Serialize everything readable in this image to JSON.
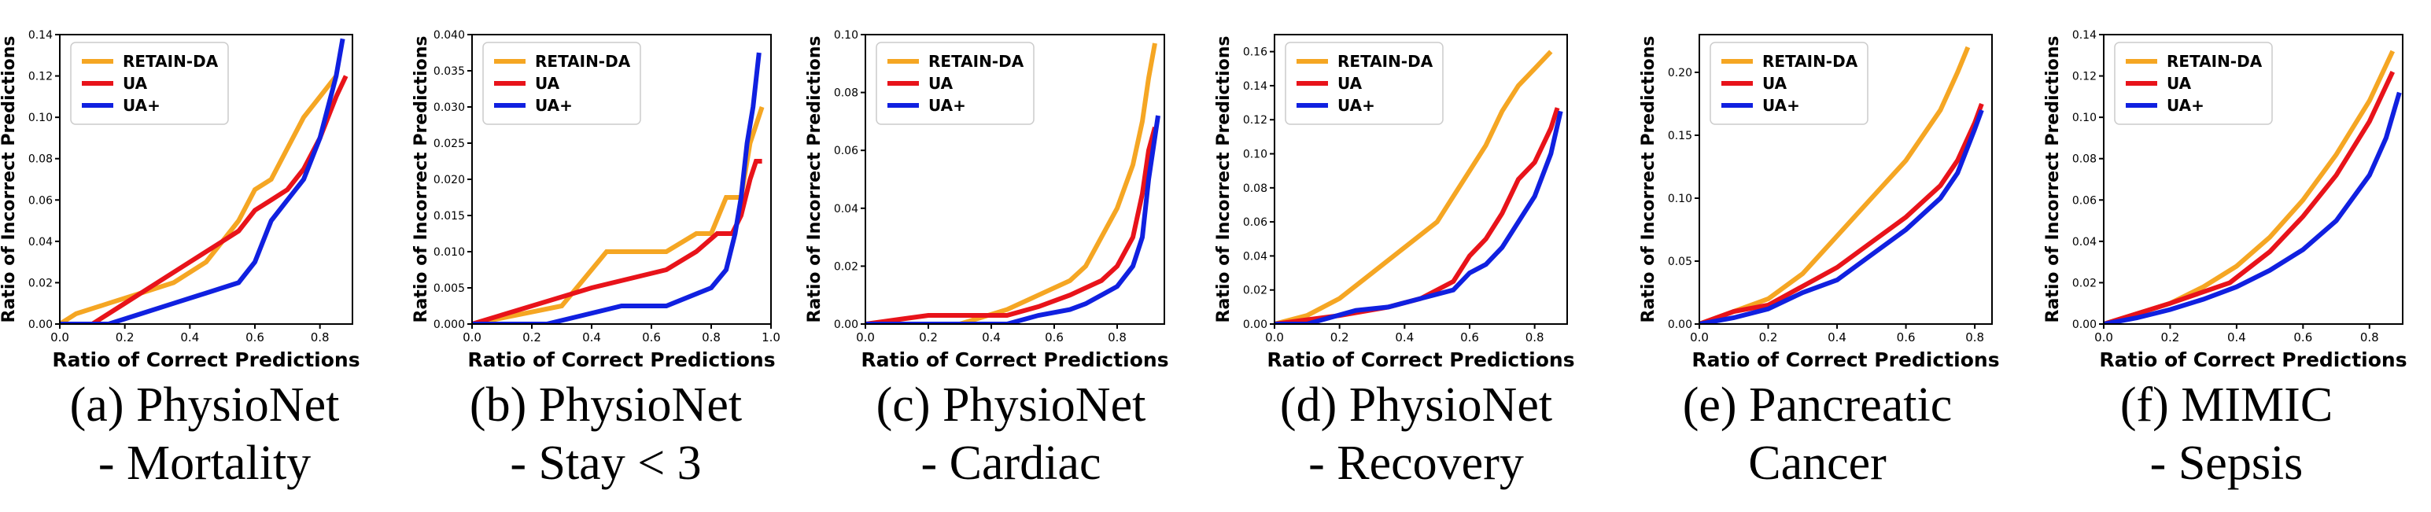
{
  "chart_data": [
    {
      "type": "line",
      "caption": [
        "(a) PhysioNet",
        "- Mortality"
      ],
      "xlabel": "Ratio of Correct Predictions",
      "ylabel": "Ratio of Incorrect Predictions",
      "xlim": [
        0.0,
        0.9
      ],
      "ylim": [
        0.0,
        0.14
      ],
      "xticks": [
        "0.0",
        "0.2",
        "0.4",
        "0.6",
        "0.8"
      ],
      "xtick_values": [
        0.0,
        0.2,
        0.4,
        0.6,
        0.8
      ],
      "yticks": [
        "0.00",
        "0.02",
        "0.04",
        "0.06",
        "0.08",
        "0.10",
        "0.12",
        "0.14"
      ],
      "ytick_values": [
        0.0,
        0.02,
        0.04,
        0.06,
        0.08,
        0.1,
        0.12,
        0.14
      ],
      "legend": "top-left",
      "series": [
        {
          "name": "RETAIN-DA",
          "color": "#f5a623",
          "x": [
            0.0,
            0.05,
            0.15,
            0.25,
            0.35,
            0.45,
            0.5,
            0.55,
            0.6,
            0.65,
            0.7,
            0.75,
            0.8,
            0.85
          ],
          "y": [
            0.0,
            0.005,
            0.01,
            0.015,
            0.02,
            0.03,
            0.04,
            0.05,
            0.065,
            0.07,
            0.085,
            0.1,
            0.11,
            0.12
          ]
        },
        {
          "name": "UA",
          "color": "#e8131a",
          "x": [
            0.0,
            0.1,
            0.2,
            0.3,
            0.4,
            0.5,
            0.55,
            0.6,
            0.65,
            0.7,
            0.75,
            0.8,
            0.85,
            0.88
          ],
          "y": [
            0.0,
            0.0,
            0.01,
            0.02,
            0.03,
            0.04,
            0.045,
            0.055,
            0.06,
            0.065,
            0.075,
            0.09,
            0.11,
            0.12
          ]
        },
        {
          "name": "UA+",
          "color": "#1020e0",
          "x": [
            0.0,
            0.15,
            0.25,
            0.35,
            0.45,
            0.55,
            0.6,
            0.65,
            0.7,
            0.75,
            0.8,
            0.85,
            0.87
          ],
          "y": [
            0.0,
            0.0,
            0.005,
            0.01,
            0.015,
            0.02,
            0.03,
            0.05,
            0.06,
            0.07,
            0.09,
            0.12,
            0.138
          ]
        }
      ]
    },
    {
      "type": "line",
      "caption": [
        "(b) PhysioNet",
        "- Stay < 3"
      ],
      "xlabel": "Ratio of Correct Predictions",
      "ylabel": "Ratio of Incorrect Predictions",
      "xlim": [
        0.0,
        1.0
      ],
      "ylim": [
        0.0,
        0.04
      ],
      "xticks": [
        "0.0",
        "0.2",
        "0.4",
        "0.6",
        "0.8",
        "1.0"
      ],
      "xtick_values": [
        0.0,
        0.2,
        0.4,
        0.6,
        0.8,
        1.0
      ],
      "yticks": [
        "0.000",
        "0.005",
        "0.010",
        "0.015",
        "0.020",
        "0.025",
        "0.030",
        "0.035",
        "0.040"
      ],
      "ytick_values": [
        0.0,
        0.005,
        0.01,
        0.015,
        0.02,
        0.025,
        0.03,
        0.035,
        0.04
      ],
      "legend": "top-left",
      "series": [
        {
          "name": "RETAIN-DA",
          "color": "#f5a623",
          "x": [
            0.0,
            0.3,
            0.45,
            0.65,
            0.75,
            0.8,
            0.85,
            0.9,
            0.93,
            0.95,
            0.97
          ],
          "y": [
            0.0,
            0.0025,
            0.01,
            0.01,
            0.0125,
            0.0125,
            0.0175,
            0.0175,
            0.025,
            0.0275,
            0.03
          ]
        },
        {
          "name": "UA",
          "color": "#e8131a",
          "x": [
            0.0,
            0.4,
            0.65,
            0.75,
            0.82,
            0.87,
            0.9,
            0.93,
            0.95,
            0.97
          ],
          "y": [
            0.0,
            0.005,
            0.0075,
            0.01,
            0.0125,
            0.0125,
            0.015,
            0.02,
            0.0225,
            0.0225
          ]
        },
        {
          "name": "UA+",
          "color": "#1020e0",
          "x": [
            0.0,
            0.25,
            0.5,
            0.65,
            0.8,
            0.85,
            0.88,
            0.9,
            0.92,
            0.94,
            0.96
          ],
          "y": [
            0.0,
            0.0,
            0.0025,
            0.0025,
            0.005,
            0.0075,
            0.0125,
            0.0175,
            0.025,
            0.03,
            0.0375
          ]
        }
      ]
    },
    {
      "type": "line",
      "caption": [
        "(c) PhysioNet",
        "- Cardiac"
      ],
      "xlabel": "Ratio of Correct Predictions",
      "ylabel": "Ratio of Incorrect Predictions",
      "xlim": [
        0.0,
        0.95
      ],
      "ylim": [
        0.0,
        0.1
      ],
      "xticks": [
        "0.0",
        "0.2",
        "0.4",
        "0.6",
        "0.8"
      ],
      "xtick_values": [
        0.0,
        0.2,
        0.4,
        0.6,
        0.8
      ],
      "yticks": [
        "0.00",
        "0.02",
        "0.04",
        "0.06",
        "0.08",
        "0.10"
      ],
      "ytick_values": [
        0.0,
        0.02,
        0.04,
        0.06,
        0.08,
        0.1
      ],
      "legend": "top-left",
      "series": [
        {
          "name": "RETAIN-DA",
          "color": "#f5a623",
          "x": [
            0.0,
            0.3,
            0.45,
            0.55,
            0.65,
            0.7,
            0.75,
            0.8,
            0.85,
            0.88,
            0.9,
            0.92
          ],
          "y": [
            0.0,
            0.0,
            0.005,
            0.01,
            0.015,
            0.02,
            0.03,
            0.04,
            0.055,
            0.07,
            0.085,
            0.097
          ]
        },
        {
          "name": "UA",
          "color": "#e8131a",
          "x": [
            0.0,
            0.2,
            0.45,
            0.55,
            0.65,
            0.75,
            0.8,
            0.85,
            0.88,
            0.9,
            0.92
          ],
          "y": [
            0.0,
            0.003,
            0.003,
            0.006,
            0.01,
            0.015,
            0.02,
            0.03,
            0.045,
            0.06,
            0.068
          ]
        },
        {
          "name": "UA+",
          "color": "#1020e0",
          "x": [
            0.0,
            0.45,
            0.55,
            0.65,
            0.7,
            0.75,
            0.8,
            0.85,
            0.88,
            0.9,
            0.93
          ],
          "y": [
            0.0,
            0.0,
            0.003,
            0.005,
            0.007,
            0.01,
            0.013,
            0.02,
            0.03,
            0.05,
            0.072
          ]
        }
      ]
    },
    {
      "type": "line",
      "caption": [
        "(d) PhysioNet",
        "- Recovery"
      ],
      "xlabel": "Ratio of Correct Predictions",
      "ylabel": "Ratio of Incorrect Predictions",
      "xlim": [
        0.0,
        0.9
      ],
      "ylim": [
        0.0,
        0.17
      ],
      "xticks": [
        "0.0",
        "0.2",
        "0.4",
        "0.6",
        "0.8"
      ],
      "xtick_values": [
        0.0,
        0.2,
        0.4,
        0.6,
        0.8
      ],
      "yticks": [
        "0.00",
        "0.02",
        "0.04",
        "0.06",
        "0.08",
        "0.10",
        "0.12",
        "0.14",
        "0.16"
      ],
      "ytick_values": [
        0.0,
        0.02,
        0.04,
        0.06,
        0.08,
        0.1,
        0.12,
        0.14,
        0.16
      ],
      "legend": "top-left",
      "series": [
        {
          "name": "RETAIN-DA",
          "color": "#f5a623",
          "x": [
            0.0,
            0.1,
            0.2,
            0.3,
            0.4,
            0.5,
            0.55,
            0.6,
            0.65,
            0.7,
            0.75,
            0.8,
            0.85
          ],
          "y": [
            0.0,
            0.005,
            0.015,
            0.03,
            0.045,
            0.06,
            0.075,
            0.09,
            0.105,
            0.125,
            0.14,
            0.15,
            0.16
          ]
        },
        {
          "name": "UA",
          "color": "#e8131a",
          "x": [
            0.0,
            0.2,
            0.35,
            0.45,
            0.55,
            0.6,
            0.65,
            0.7,
            0.75,
            0.8,
            0.85,
            0.87
          ],
          "y": [
            0.0,
            0.005,
            0.01,
            0.015,
            0.025,
            0.04,
            0.05,
            0.065,
            0.085,
            0.095,
            0.115,
            0.127
          ]
        },
        {
          "name": "UA+",
          "color": "#1020e0",
          "x": [
            0.0,
            0.1,
            0.25,
            0.35,
            0.45,
            0.55,
            0.6,
            0.65,
            0.7,
            0.75,
            0.8,
            0.85,
            0.88
          ],
          "y": [
            0.0,
            0.0,
            0.008,
            0.01,
            0.015,
            0.02,
            0.03,
            0.035,
            0.045,
            0.06,
            0.075,
            0.1,
            0.125
          ]
        }
      ]
    },
    {
      "type": "line",
      "caption": [
        "(e) Pancreatic",
        "Cancer"
      ],
      "xlabel": "Ratio of Correct Predictions",
      "ylabel": "Ratio of Incorrect Predictions",
      "xlim": [
        0.0,
        0.85
      ],
      "ylim": [
        0.0,
        0.23
      ],
      "xticks": [
        "0.0",
        "0.2",
        "0.4",
        "0.6",
        "0.8"
      ],
      "xtick_values": [
        0.0,
        0.2,
        0.4,
        0.6,
        0.8
      ],
      "yticks": [
        "0.00",
        "0.05",
        "0.10",
        "0.15",
        "0.20"
      ],
      "ytick_values": [
        0.0,
        0.05,
        0.1,
        0.15,
        0.2
      ],
      "legend": "top-left",
      "series": [
        {
          "name": "RETAIN-DA",
          "color": "#f5a623",
          "x": [
            0.0,
            0.1,
            0.2,
            0.3,
            0.4,
            0.5,
            0.6,
            0.7,
            0.75,
            0.78
          ],
          "y": [
            0.0,
            0.01,
            0.02,
            0.04,
            0.07,
            0.1,
            0.13,
            0.17,
            0.2,
            0.22
          ]
        },
        {
          "name": "UA",
          "color": "#e8131a",
          "x": [
            0.0,
            0.1,
            0.2,
            0.3,
            0.4,
            0.5,
            0.6,
            0.7,
            0.75,
            0.8,
            0.82
          ],
          "y": [
            0.0,
            0.01,
            0.015,
            0.03,
            0.045,
            0.065,
            0.085,
            0.11,
            0.13,
            0.16,
            0.175
          ]
        },
        {
          "name": "UA+",
          "color": "#1020e0",
          "x": [
            0.0,
            0.1,
            0.2,
            0.3,
            0.4,
            0.5,
            0.6,
            0.7,
            0.75,
            0.8,
            0.82
          ],
          "y": [
            0.0,
            0.005,
            0.012,
            0.025,
            0.035,
            0.055,
            0.075,
            0.1,
            0.12,
            0.155,
            0.17
          ]
        }
      ]
    },
    {
      "type": "line",
      "caption": [
        "(f) MIMIC",
        "- Sepsis"
      ],
      "xlabel": "Ratio of Correct Predictions",
      "ylabel": "Ratio of Incorrect Predictions",
      "xlim": [
        0.0,
        0.9
      ],
      "ylim": [
        0.0,
        0.14
      ],
      "xticks": [
        "0.0",
        "0.2",
        "0.4",
        "0.6",
        "0.8"
      ],
      "xtick_values": [
        0.0,
        0.2,
        0.4,
        0.6,
        0.8
      ],
      "yticks": [
        "0.00",
        "0.02",
        "0.04",
        "0.06",
        "0.08",
        "0.10",
        "0.12",
        "0.14"
      ],
      "ytick_values": [
        0.0,
        0.02,
        0.04,
        0.06,
        0.08,
        0.1,
        0.12,
        0.14
      ],
      "legend": "top-left",
      "series": [
        {
          "name": "RETAIN-DA",
          "color": "#f5a623",
          "x": [
            0.0,
            0.2,
            0.3,
            0.4,
            0.5,
            0.6,
            0.7,
            0.8,
            0.87
          ],
          "y": [
            0.0,
            0.01,
            0.018,
            0.028,
            0.042,
            0.06,
            0.082,
            0.108,
            0.132
          ]
        },
        {
          "name": "UA",
          "color": "#e8131a",
          "x": [
            0.0,
            0.2,
            0.38,
            0.5,
            0.6,
            0.7,
            0.8,
            0.87
          ],
          "y": [
            0.0,
            0.01,
            0.02,
            0.035,
            0.052,
            0.072,
            0.098,
            0.122
          ]
        },
        {
          "name": "UA+",
          "color": "#1020e0",
          "x": [
            0.0,
            0.1,
            0.2,
            0.3,
            0.4,
            0.5,
            0.6,
            0.7,
            0.8,
            0.85,
            0.89
          ],
          "y": [
            0.0,
            0.003,
            0.007,
            0.012,
            0.018,
            0.026,
            0.036,
            0.05,
            0.072,
            0.09,
            0.112
          ]
        }
      ]
    }
  ]
}
